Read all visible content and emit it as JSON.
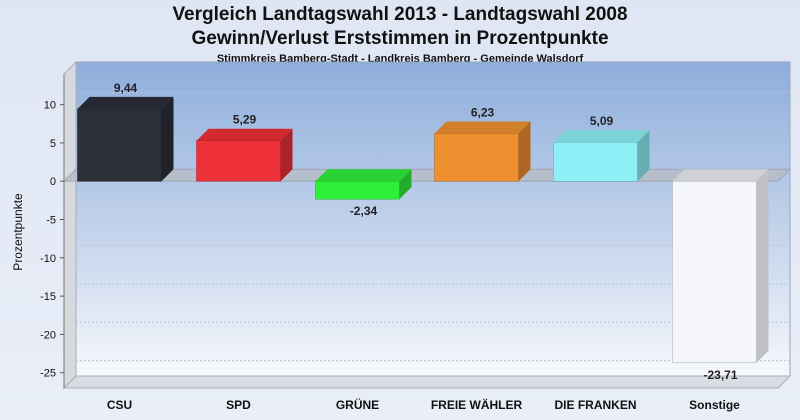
{
  "chart_data": {
    "type": "bar",
    "title": "Vergleich Landtagswahl 2013 - Landtagswahl 2008",
    "subtitle": "Gewinn/Verlust Erststimmen in Prozentpunkte",
    "caption": "Stimmkreis Bamberg-Stadt - Landkreis Bamberg - Gemeinde Walsdorf",
    "ylabel": "Prozentpunkte",
    "xlabel": "",
    "ylim": [
      -27,
      14
    ],
    "yticks": [
      10,
      5,
      0,
      -5,
      -10,
      -15,
      -20,
      -25
    ],
    "grid": true,
    "categories": [
      "CSU",
      "SPD",
      "GRÜNE",
      "FREIE WÄHLER",
      "DIE FRANKEN",
      "Sonstige"
    ],
    "values": [
      9.44,
      5.29,
      -2.34,
      6.23,
      5.09,
      -23.71
    ],
    "value_labels": [
      "9,44",
      "5,29",
      "-2,34",
      "6,23",
      "5,09",
      "-23,71"
    ],
    "colors": [
      "#2b2f38",
      "#ee3038",
      "#2ef03a",
      "#ef9030",
      "#8ef0f6",
      "#f4f6fb"
    ]
  }
}
